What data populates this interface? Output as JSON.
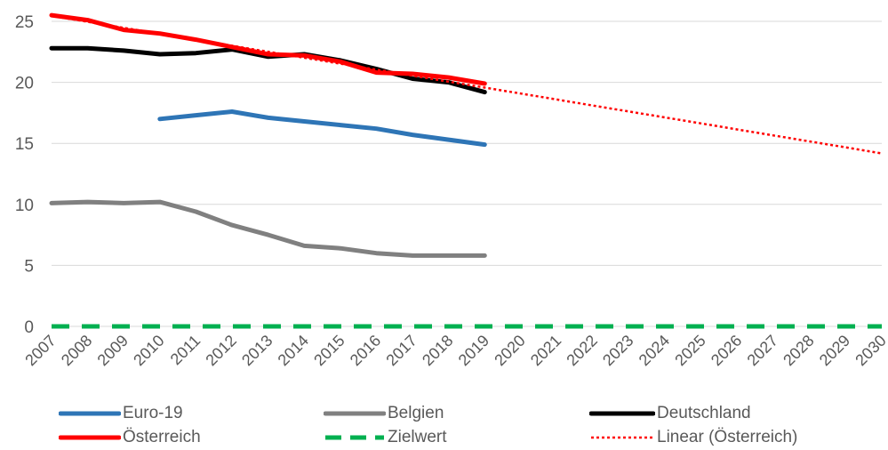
{
  "chart_data": {
    "type": "line",
    "title": "",
    "xlabel": "",
    "ylabel": "",
    "categories": [
      "2007",
      "2008",
      "2009",
      "2010",
      "2011",
      "2012",
      "2013",
      "2014",
      "2015",
      "2016",
      "2017",
      "2018",
      "2019",
      "2020",
      "2021",
      "2022",
      "2023",
      "2024",
      "2025",
      "2026",
      "2027",
      "2028",
      "2029",
      "2030"
    ],
    "ylim": [
      0,
      25
    ],
    "yticks": [
      0,
      5,
      10,
      15,
      20,
      25
    ],
    "grid": "horizontal",
    "legend_position": "bottom",
    "series": [
      {
        "name": "Euro-19",
        "color": "#2E75B6",
        "style": "solid",
        "values": [
          null,
          null,
          null,
          17.0,
          17.3,
          17.6,
          17.1,
          16.8,
          16.5,
          16.2,
          15.7,
          15.3,
          14.9,
          null,
          null,
          null,
          null,
          null,
          null,
          null,
          null,
          null,
          null,
          null
        ]
      },
      {
        "name": "Belgien",
        "color": "#808080",
        "style": "solid",
        "values": [
          10.1,
          10.2,
          10.1,
          10.2,
          9.4,
          8.3,
          7.5,
          6.6,
          6.4,
          6.0,
          5.8,
          5.8,
          5.8,
          null,
          null,
          null,
          null,
          null,
          null,
          null,
          null,
          null,
          null,
          null
        ]
      },
      {
        "name": "Deutschland",
        "color": "#000000",
        "style": "solid",
        "values": [
          22.8,
          22.8,
          22.6,
          22.3,
          22.4,
          22.7,
          22.1,
          22.3,
          21.8,
          21.1,
          20.3,
          20.0,
          19.2,
          null,
          null,
          null,
          null,
          null,
          null,
          null,
          null,
          null,
          null,
          null
        ]
      },
      {
        "name": "Österreich",
        "color": "#FF0000",
        "style": "solid",
        "values": [
          25.5,
          25.1,
          24.3,
          24.0,
          23.5,
          22.9,
          22.3,
          22.2,
          21.7,
          20.8,
          20.7,
          20.4,
          19.9,
          null,
          null,
          null,
          null,
          null,
          null,
          null,
          null,
          null,
          null,
          null
        ]
      },
      {
        "name": "Zielwert",
        "color": "#00B050",
        "style": "dashed",
        "values": [
          0,
          0,
          0,
          0,
          0,
          0,
          0,
          0,
          0,
          0,
          0,
          0,
          0,
          0,
          0,
          0,
          0,
          0,
          0,
          0,
          0,
          0,
          0,
          0
        ]
      },
      {
        "name": "Linear (Österreich)",
        "color": "#FF0000",
        "style": "dotted",
        "trendline": true,
        "values": [
          25.45,
          24.96,
          24.47,
          23.98,
          23.49,
          23.0,
          22.51,
          22.02,
          21.53,
          21.04,
          20.55,
          20.06,
          19.57,
          19.08,
          18.59,
          18.1,
          17.61,
          17.12,
          16.63,
          16.14,
          15.65,
          15.16,
          14.67,
          14.18
        ]
      }
    ]
  }
}
